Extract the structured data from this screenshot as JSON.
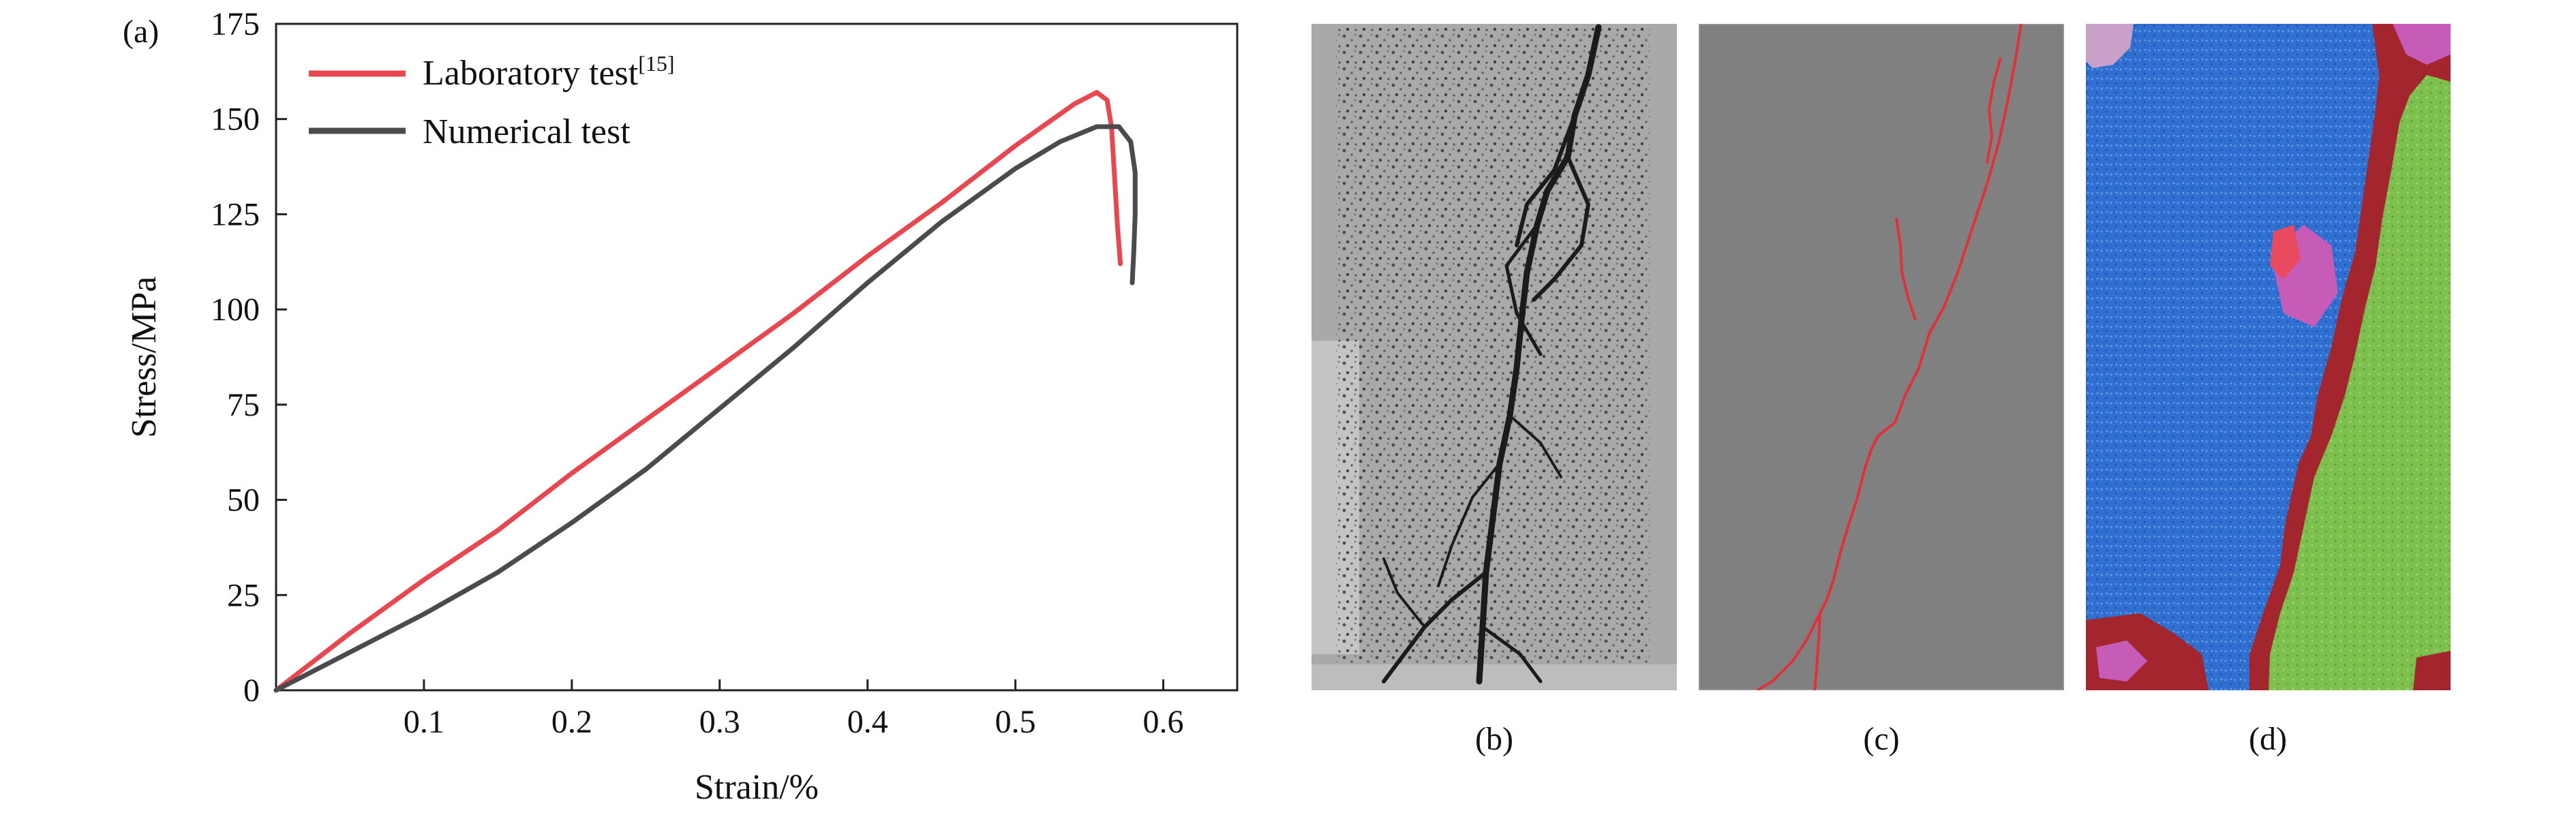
{
  "panel_labels": {
    "a": "(a)",
    "b": "(b)",
    "c": "(c)",
    "d": "(d)"
  },
  "chart_data": {
    "type": "line",
    "title": "",
    "xlabel": "Strain/%",
    "ylabel": "Stress/MPa",
    "xlim": [
      0,
      0.65
    ],
    "ylim": [
      0,
      175
    ],
    "x_ticks": [
      0.1,
      0.2,
      0.3,
      0.4,
      0.5,
      0.6
    ],
    "x_tick_labels": [
      "0.1",
      "0.2",
      "0.3",
      "0.4",
      "0.5",
      "0.6"
    ],
    "y_ticks": [
      0,
      25,
      50,
      75,
      100,
      125,
      150,
      175
    ],
    "y_tick_labels": [
      "0",
      "25",
      "50",
      "75",
      "100",
      "125",
      "150",
      "175"
    ],
    "grid": false,
    "legend_position": "top-left",
    "series": [
      {
        "name": "Laboratory test",
        "name_sup": "[15]",
        "color": "#e8474f",
        "points": [
          [
            0,
            0
          ],
          [
            0.05,
            15
          ],
          [
            0.1,
            29
          ],
          [
            0.15,
            42
          ],
          [
            0.2,
            57
          ],
          [
            0.25,
            71
          ],
          [
            0.3,
            85
          ],
          [
            0.35,
            99
          ],
          [
            0.4,
            114
          ],
          [
            0.45,
            128
          ],
          [
            0.5,
            143
          ],
          [
            0.54,
            154
          ],
          [
            0.555,
            157
          ],
          [
            0.562,
            155
          ],
          [
            0.565,
            148
          ],
          [
            0.567,
            135
          ],
          [
            0.569,
            122
          ],
          [
            0.571,
            112
          ]
        ]
      },
      {
        "name": "Numerical test",
        "color": "#4b4b4d",
        "points": [
          [
            0,
            0
          ],
          [
            0.05,
            10
          ],
          [
            0.1,
            20
          ],
          [
            0.15,
            31
          ],
          [
            0.2,
            44
          ],
          [
            0.25,
            58
          ],
          [
            0.3,
            74
          ],
          [
            0.35,
            90
          ],
          [
            0.4,
            107
          ],
          [
            0.45,
            123
          ],
          [
            0.5,
            137
          ],
          [
            0.53,
            144
          ],
          [
            0.555,
            148
          ],
          [
            0.57,
            148
          ],
          [
            0.578,
            144
          ],
          [
            0.581,
            136
          ],
          [
            0.581,
            125
          ],
          [
            0.58,
            115
          ],
          [
            0.579,
            107
          ]
        ]
      }
    ]
  },
  "images": {
    "b": {
      "description": "Laboratory specimen photo",
      "background": "#a9a9a9"
    },
    "c": {
      "description": "Numerical crack pattern",
      "background": "#808080",
      "crack_color": "#e0303a"
    },
    "d": {
      "description": "Fragment map",
      "colors": [
        "#2f6fd0",
        "#7ec04e",
        "#a3262f",
        "#c75bb8",
        "#e84a5f"
      ]
    }
  }
}
